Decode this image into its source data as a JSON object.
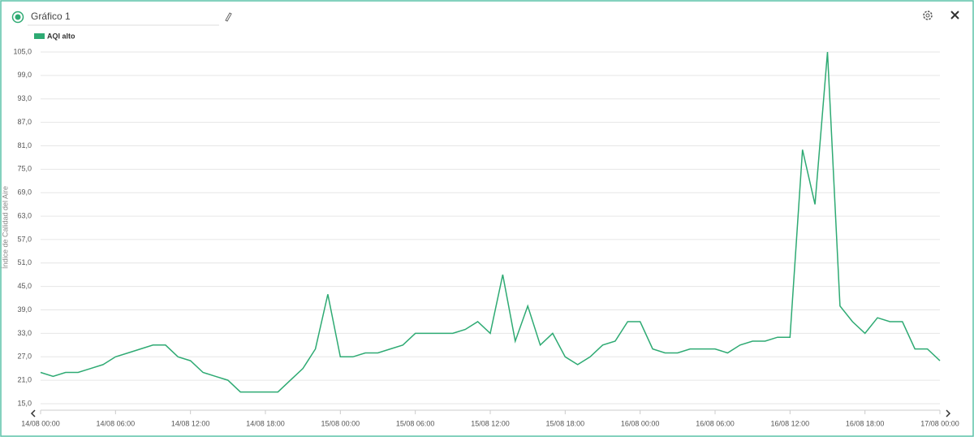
{
  "ui": {
    "title": "Gráfico 1"
  },
  "chart_data": {
    "type": "line",
    "y_label": "Índice de Calidad del Aire",
    "x": [
      "14/08 00:00",
      "14/08 01:00",
      "14/08 02:00",
      "14/08 03:00",
      "14/08 04:00",
      "14/08 05:00",
      "14/08 06:00",
      "14/08 07:00",
      "14/08 08:00",
      "14/08 09:00",
      "14/08 10:00",
      "14/08 11:00",
      "14/08 12:00",
      "14/08 13:00",
      "14/08 14:00",
      "14/08 15:00",
      "14/08 16:00",
      "14/08 17:00",
      "14/08 18:00",
      "14/08 19:00",
      "14/08 20:00",
      "14/08 21:00",
      "14/08 22:00",
      "14/08 23:00",
      "15/08 00:00",
      "15/08 01:00",
      "15/08 02:00",
      "15/08 03:00",
      "15/08 04:00",
      "15/08 05:00",
      "15/08 06:00",
      "15/08 07:00",
      "15/08 08:00",
      "15/08 09:00",
      "15/08 10:00",
      "15/08 11:00",
      "15/08 12:00",
      "15/08 13:00",
      "15/08 14:00",
      "15/08 15:00",
      "15/08 16:00",
      "15/08 17:00",
      "15/08 18:00",
      "15/08 19:00",
      "15/08 20:00",
      "15/08 21:00",
      "15/08 22:00",
      "15/08 23:00",
      "16/08 00:00",
      "16/08 01:00",
      "16/08 02:00",
      "16/08 03:00",
      "16/08 04:00",
      "16/08 05:00",
      "16/08 06:00",
      "16/08 07:00",
      "16/08 08:00",
      "16/08 09:00",
      "16/08 10:00",
      "16/08 11:00",
      "16/08 12:00",
      "16/08 13:00",
      "16/08 14:00",
      "16/08 15:00",
      "16/08 16:00",
      "16/08 17:00",
      "16/08 18:00",
      "16/08 19:00",
      "16/08 20:00",
      "16/08 21:00",
      "16/08 22:00",
      "16/08 23:00",
      "17/08 00:00"
    ],
    "series": [
      {
        "name": "AQI alto",
        "color": "#2eaa73",
        "values": [
          23,
          22,
          23,
          23,
          24,
          25,
          27,
          28,
          29,
          30,
          30,
          27,
          26,
          23,
          22,
          21,
          18,
          18,
          18,
          18,
          21,
          24,
          29,
          43,
          27,
          27,
          28,
          28,
          29,
          30,
          33,
          33,
          33,
          33,
          34,
          36,
          33,
          48,
          31,
          40,
          30,
          33,
          27,
          25,
          27,
          30,
          31,
          36,
          36,
          29,
          28,
          28,
          29,
          29,
          29,
          28,
          30,
          31,
          31,
          32,
          32,
          80,
          66,
          105,
          40,
          36,
          33,
          37,
          36,
          36,
          29,
          29,
          26
        ]
      }
    ],
    "xlim": [
      "14/08 00:00",
      "17/08 00:00"
    ],
    "xticks": [
      "14/08 00:00",
      "14/08 06:00",
      "14/08 12:00",
      "14/08 18:00",
      "15/08 00:00",
      "15/08 06:00",
      "15/08 12:00",
      "15/08 18:00",
      "16/08 00:00",
      "16/08 06:00",
      "16/08 12:00",
      "16/08 18:00",
      "17/08 00:00"
    ],
    "ylim": [
      15,
      105
    ],
    "yticks": [
      {
        "value": 15,
        "label": "15,0"
      },
      {
        "value": 21,
        "label": "21,0"
      },
      {
        "value": 27,
        "label": "27,0"
      },
      {
        "value": 33,
        "label": "33,0"
      },
      {
        "value": 39,
        "label": "39,0"
      },
      {
        "value": 45,
        "label": "45,0"
      },
      {
        "value": 51,
        "label": "51,0"
      },
      {
        "value": 57,
        "label": "57,0"
      },
      {
        "value": 63,
        "label": "63,0"
      },
      {
        "value": 69,
        "label": "69,0"
      },
      {
        "value": 75,
        "label": "75,0"
      },
      {
        "value": 81,
        "label": "81,0"
      },
      {
        "value": 87,
        "label": "87,0"
      },
      {
        "value": 93,
        "label": "93,0"
      },
      {
        "value": 99,
        "label": "99,0"
      },
      {
        "value": 105,
        "label": "105,0"
      }
    ],
    "grid": true
  }
}
